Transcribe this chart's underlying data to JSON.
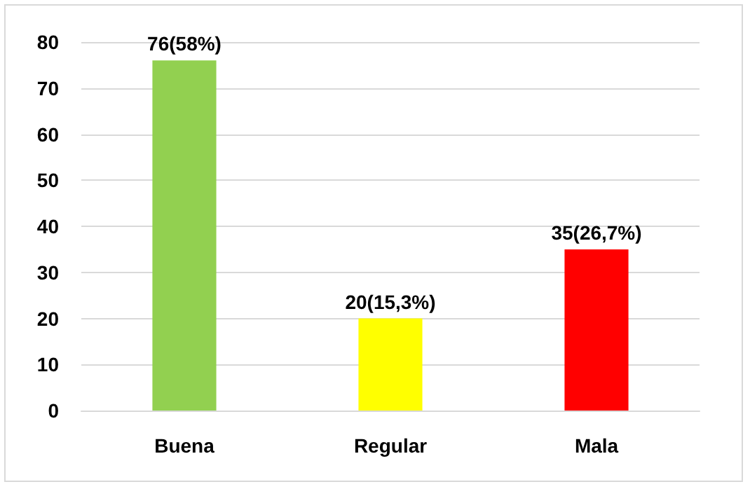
{
  "chart_data": {
    "type": "bar",
    "categories": [
      "Buena",
      "Regular",
      "Mala"
    ],
    "values": [
      76,
      20,
      35
    ],
    "colors": [
      "#92d050",
      "#ffff00",
      "#ff0000"
    ],
    "value_labels": [
      "76(58%)",
      "20(15,3%)",
      "35(26,7%)"
    ],
    "ylim": [
      0,
      80
    ],
    "yticks": [
      0,
      10,
      20,
      30,
      40,
      50,
      60,
      70,
      80
    ],
    "grid": "y"
  }
}
